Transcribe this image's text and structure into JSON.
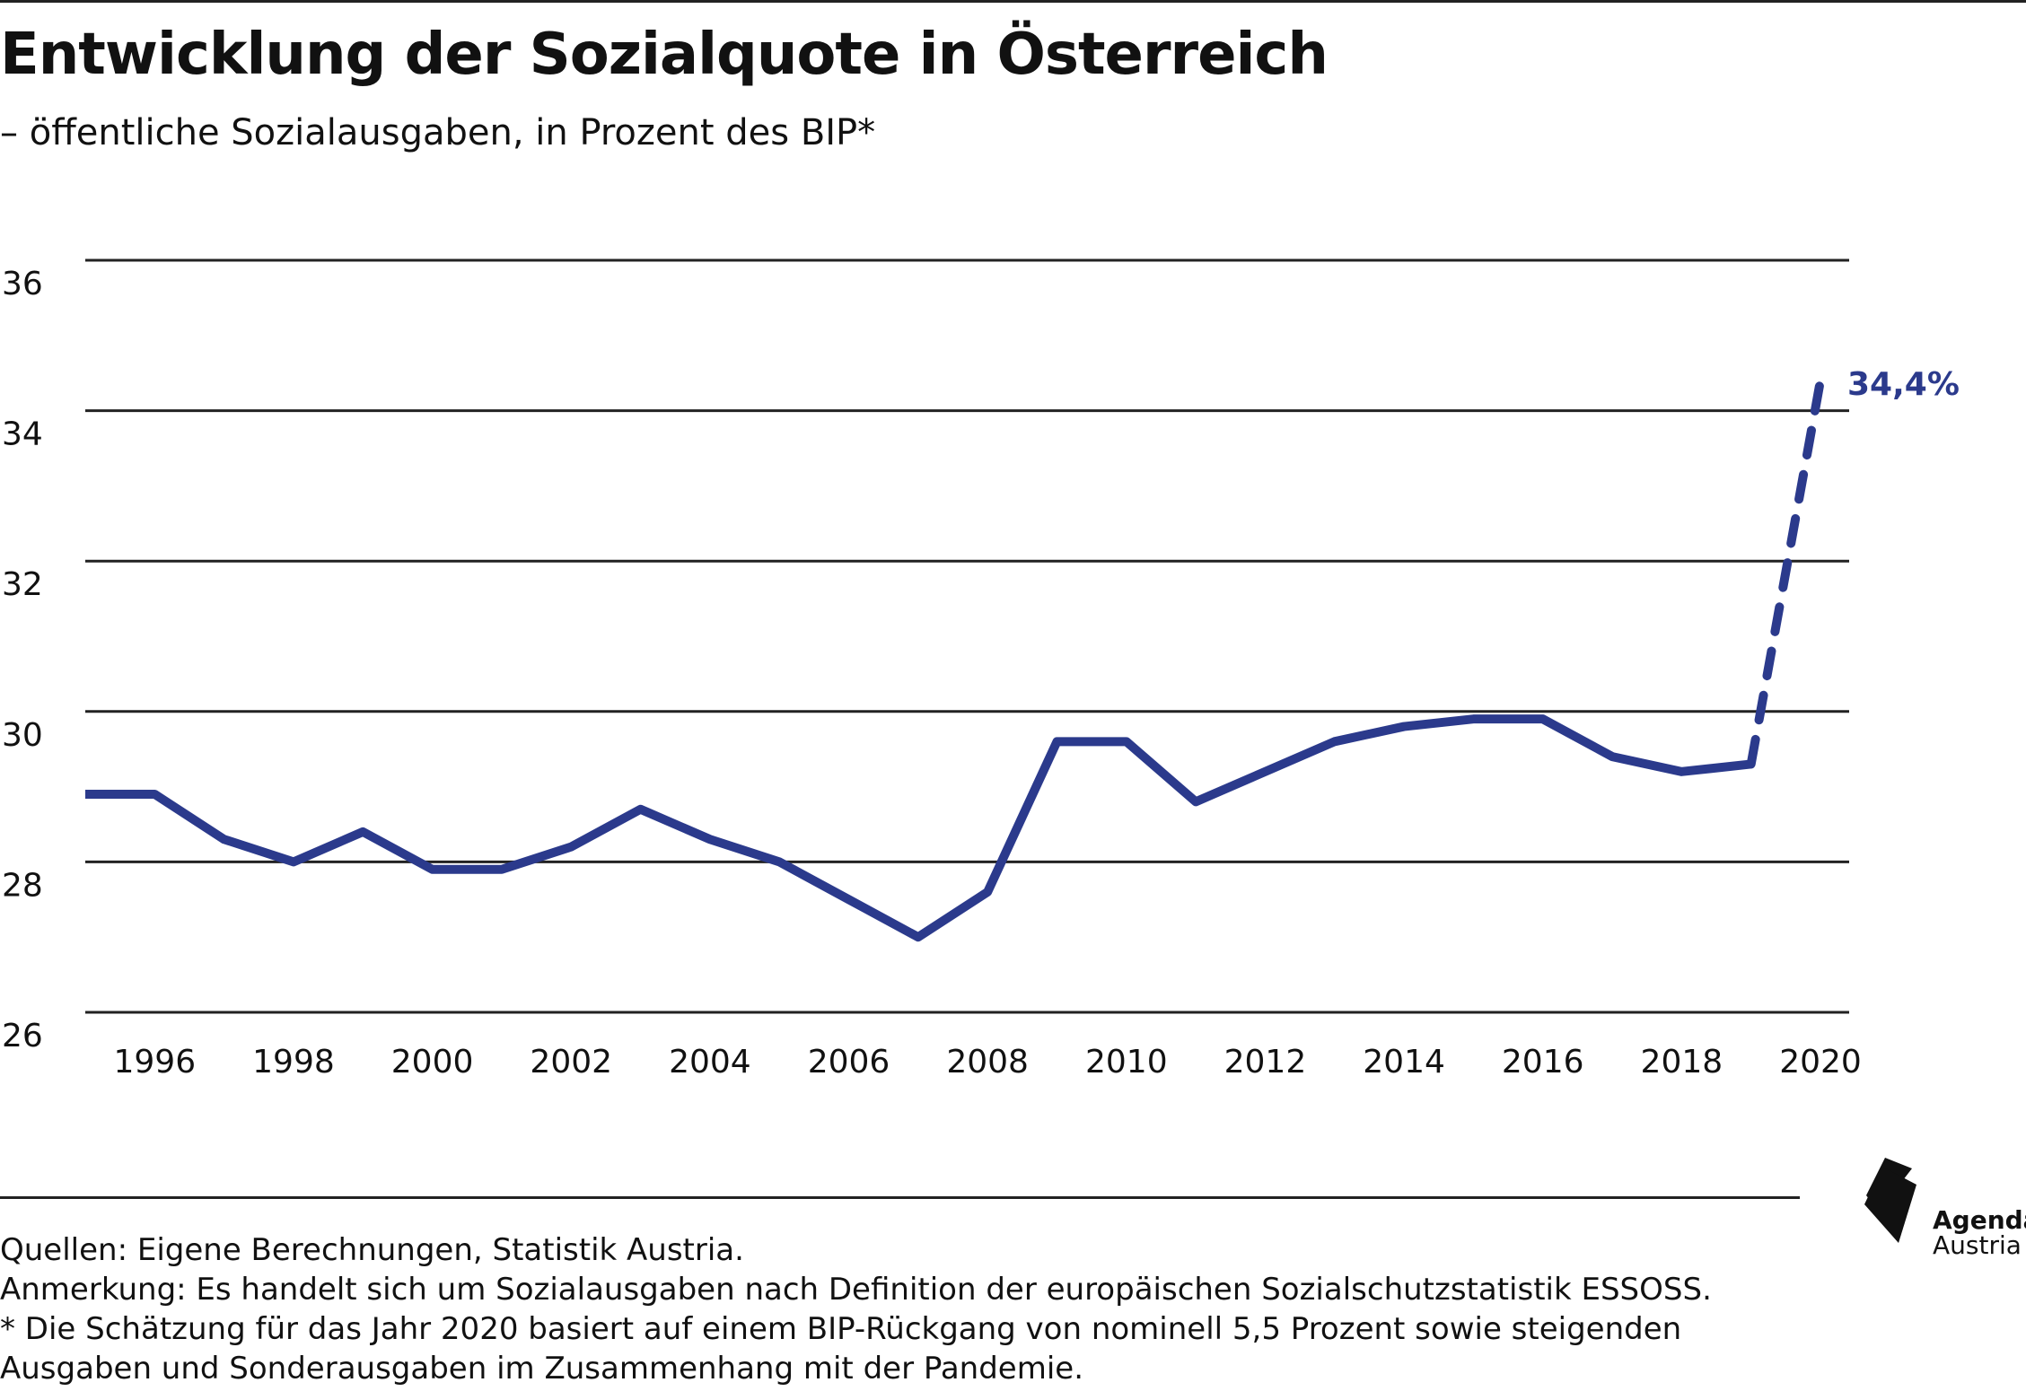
{
  "title": "Entwicklung der Sozialquote in Österreich",
  "subtitle": "– öffentliche Sozialausgaben, in Prozent des BIP*",
  "chart_data": {
    "type": "line",
    "ylim": [
      26,
      36
    ],
    "yticks": [
      "26",
      "28",
      "30",
      "32",
      "34",
      "36"
    ],
    "xticks": [
      "1996",
      "1998",
      "2000",
      "2002",
      "2004",
      "2006",
      "2008",
      "2010",
      "2012",
      "2014",
      "2016",
      "2018",
      "2020"
    ],
    "grid": true,
    "color": "#2b3a8c",
    "series": [
      {
        "x": [
          1995,
          1996,
          1997,
          1998,
          1999,
          2000,
          2001,
          2002,
          2003,
          2004,
          2005,
          2006,
          2007,
          2008,
          2009,
          2010,
          2011,
          2012,
          2013,
          2014,
          2015,
          2016,
          2017,
          2018,
          2019
        ],
        "values": [
          28.9,
          28.9,
          28.3,
          28.0,
          28.4,
          27.9,
          27.9,
          28.2,
          28.7,
          28.3,
          28.0,
          27.5,
          27.0,
          27.6,
          29.6,
          29.6,
          28.8,
          29.2,
          29.6,
          29.8,
          29.9,
          29.9,
          29.4,
          29.2,
          29.3
        ],
        "style": "solid"
      },
      {
        "x": [
          2019,
          2020
        ],
        "values": [
          29.3,
          34.4
        ],
        "style": "dashed"
      }
    ],
    "annotations": [
      {
        "x": 2020,
        "y": 34.4,
        "text": "34,4%"
      }
    ]
  },
  "footer": {
    "sources": "Quellen: Eigene Berechnungen, Statistik Austria.",
    "note": "Anmerkung: Es handelt sich um Sozialausgaben nach Definition der europäischen Sozialschutzstatistik ESSOSS.",
    "footnote_line1": "* Die Schätzung für das Jahr 2020 basiert auf einem BIP-Rückgang von nominell 5,5 Prozent sowie steigenden",
    "footnote_line2": "Ausgaben und Sonderausgaben im Zusammenhang mit der Pandemie."
  },
  "logo": {
    "line1": "Agenda",
    "line2": "Austria"
  }
}
